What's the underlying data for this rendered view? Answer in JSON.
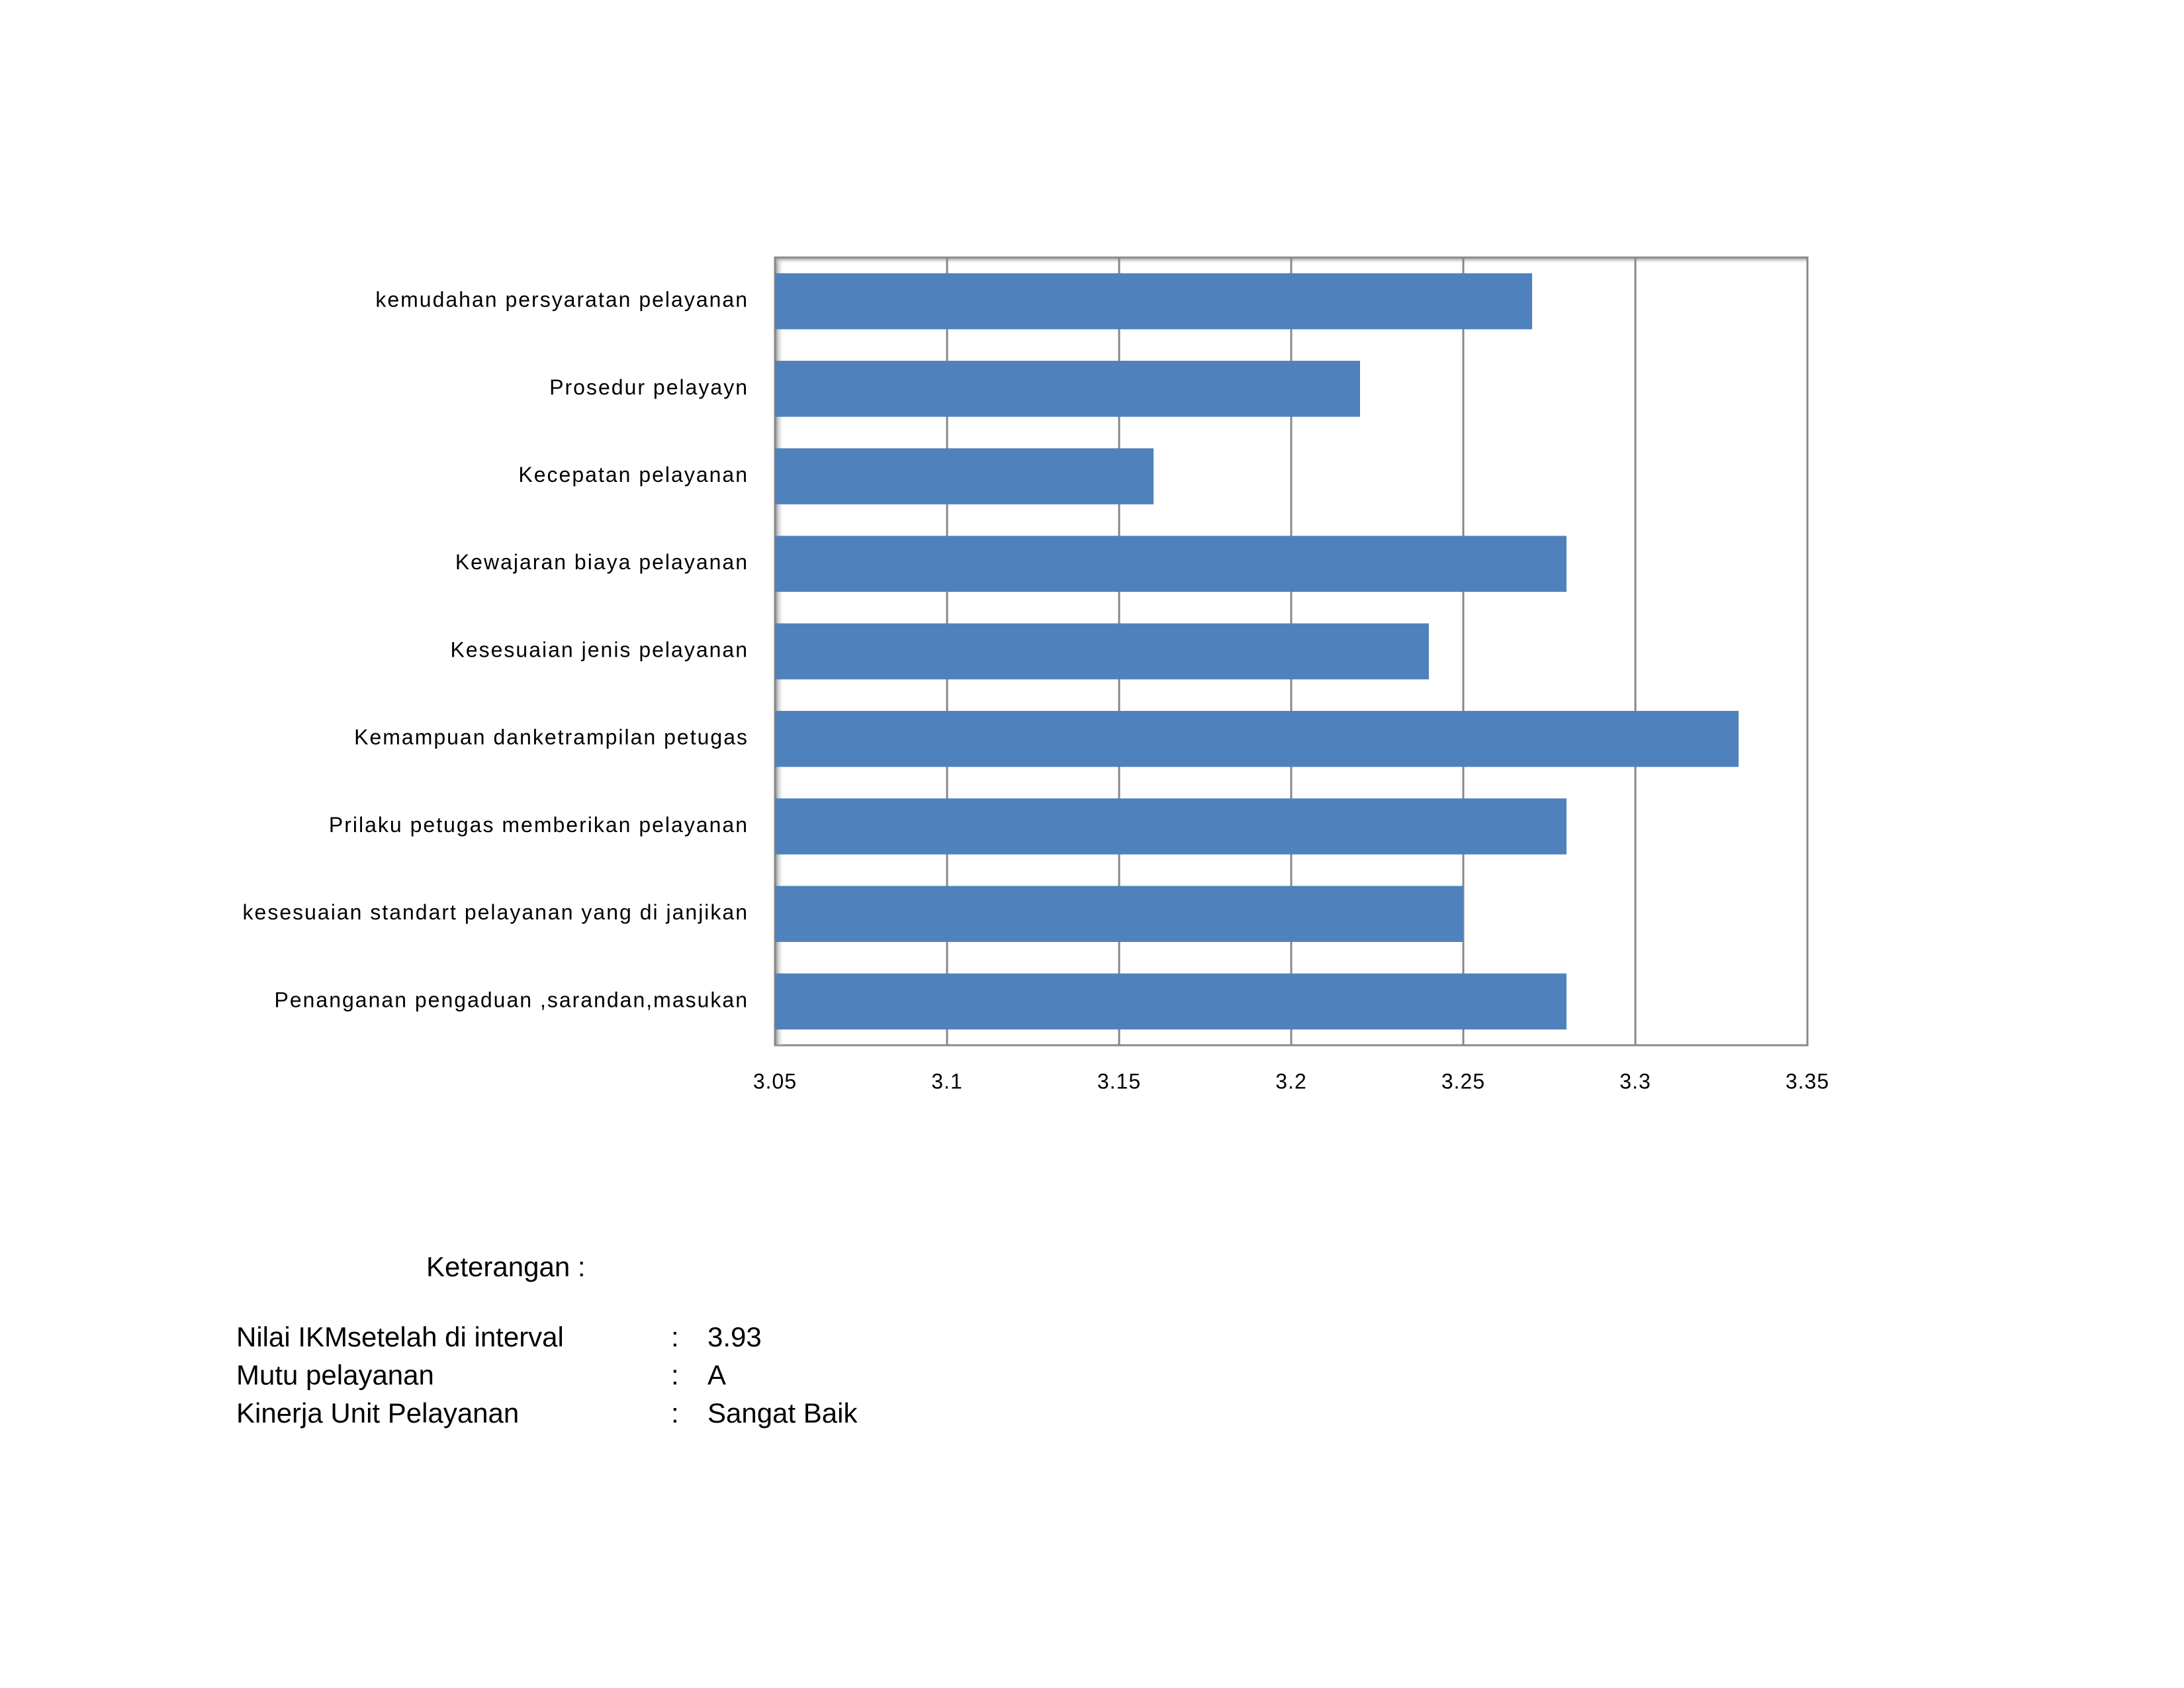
{
  "chart_data": {
    "type": "bar",
    "orientation": "horizontal",
    "categories": [
      "kemudahan persyaratan pelayanan",
      "Prosedur pelayayn",
      "Kecepatan pelayanan",
      "Kewajaran biaya pelayanan",
      "Kesesuaian jenis pelayanan",
      "Kemampuan danketrampilan petugas",
      "Prilaku petugas memberikan pelayanan",
      "kesesuaian standart pelayanan yang di janjikan",
      "Penanganan pengaduan ,sarandan,masukan"
    ],
    "values": [
      3.27,
      3.22,
      3.16,
      3.28,
      3.24,
      3.33,
      3.28,
      3.25,
      3.28
    ],
    "color": "#4f81bd",
    "xlim": [
      3.05,
      3.35
    ],
    "xticks": [
      3.05,
      3.1,
      3.15,
      3.2,
      3.25,
      3.3,
      3.35
    ],
    "grid": true
  },
  "notes": {
    "title": "Keterangan :",
    "rows": [
      {
        "label": "Nilai IKMsetelah di interval",
        "separator": ":",
        "value": "3.93"
      },
      {
        "label": "Mutu pelayanan",
        "separator": ":",
        "value": "A"
      },
      {
        "label": "Kinerja Unit Pelayanan",
        "separator": ":",
        "value": "Sangat Baik"
      }
    ]
  }
}
